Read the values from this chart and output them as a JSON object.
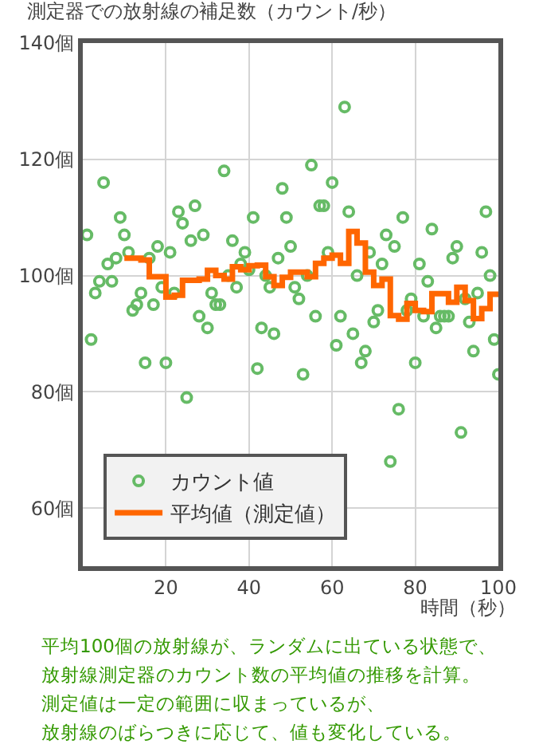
{
  "chart_data": {
    "type": "scatter",
    "title": "測定器での放射線の補足数（カウント/秒）",
    "xlabel": "時間（秒）",
    "xlim": [
      0,
      100
    ],
    "xticks": [
      20,
      40,
      60,
      80,
      100
    ],
    "ylim": [
      50,
      140
    ],
    "yticks": [
      {
        "value": 60,
        "label": "60個"
      },
      {
        "value": 80,
        "label": "80個"
      },
      {
        "value": 100,
        "label": "100個"
      },
      {
        "value": 120,
        "label": "120個"
      },
      {
        "value": 140,
        "label": "140個"
      }
    ],
    "grid": true,
    "legend": "bottom left",
    "series": [
      {
        "name": "カウント値",
        "marker": "circle",
        "color": "#66bb66",
        "x": [
          1,
          2,
          3,
          4,
          5,
          6,
          7,
          8,
          9,
          10,
          11,
          12,
          13,
          14,
          15,
          16,
          17,
          18,
          19,
          20,
          21,
          22,
          23,
          24,
          25,
          26,
          27,
          28,
          29,
          30,
          31,
          32,
          33,
          34,
          35,
          36,
          37,
          38,
          39,
          40,
          41,
          42,
          43,
          44,
          45,
          46,
          47,
          48,
          49,
          50,
          51,
          52,
          53,
          54,
          55,
          56,
          57,
          58,
          59,
          60,
          61,
          62,
          63,
          64,
          65,
          66,
          67,
          68,
          69,
          70,
          71,
          72,
          73,
          74,
          75,
          76,
          77,
          78,
          79,
          80,
          81,
          82,
          83,
          84,
          85,
          86,
          87,
          88,
          89,
          90,
          91,
          92,
          93,
          94,
          95,
          96,
          97,
          98,
          99,
          100
        ],
        "values": [
          107,
          89,
          97,
          99,
          116,
          102,
          99,
          103,
          110,
          107,
          104,
          94,
          95,
          97,
          85,
          103,
          95,
          105,
          98,
          85,
          104,
          97,
          111,
          109,
          79,
          106,
          112,
          93,
          107,
          91,
          97,
          95,
          95,
          118,
          100,
          106,
          98,
          102,
          104,
          101,
          110,
          84,
          91,
          100,
          98,
          90,
          103,
          115,
          110,
          105,
          98,
          96,
          83,
          100,
          119,
          93,
          112,
          112,
          104,
          116,
          88,
          93,
          129,
          111,
          90,
          100,
          85,
          87,
          104,
          92,
          94,
          102,
          107,
          68,
          105,
          77,
          110,
          94,
          96,
          85,
          102,
          93,
          99,
          108,
          91,
          93,
          93,
          93,
          103,
          105,
          73,
          96,
          92,
          87,
          97,
          104,
          111,
          100,
          89,
          83
        ]
      },
      {
        "name": "平均値（測定値）",
        "type": "step",
        "marker": "none",
        "color": "#ff6600",
        "x": [
          10,
          12,
          14,
          16,
          18,
          20,
          22,
          24,
          26,
          28,
          30,
          32,
          34,
          36,
          38,
          40,
          42,
          44,
          46,
          48,
          50,
          52,
          54,
          56,
          58,
          60,
          62,
          64,
          66,
          68,
          70,
          72,
          74,
          76,
          78,
          80,
          82,
          84,
          86,
          88,
          90,
          92,
          94,
          96,
          98,
          100
        ],
        "values": [
          103,
          103,
          102.7,
          99.8,
          99.8,
          96.3,
          96.6,
          99.2,
          99.2,
          99.4,
          100.9,
          100,
          99.4,
          101.5,
          101,
          101.7,
          101.8,
          99.8,
          98.3,
          99.7,
          100.6,
          100.6,
          99.8,
          102.1,
          103,
          103.5,
          102.1,
          107.6,
          105.6,
          100.6,
          98.3,
          99.4,
          93.1,
          92.5,
          95.2,
          94,
          93.8,
          96.9,
          96.9,
          95.4,
          98,
          95.7,
          92.6,
          94.3,
          96.8,
          96.8
        ]
      }
    ],
    "annotations": [
      "平均100個の放射線が、ランダムに出ている状態で、",
      "放射線測定器のカウント数の平均値の推移を計算。",
      "測定値は一定の範囲に収まっているが、",
      "放射線のばらつきに応じて、値も変化している。"
    ]
  }
}
